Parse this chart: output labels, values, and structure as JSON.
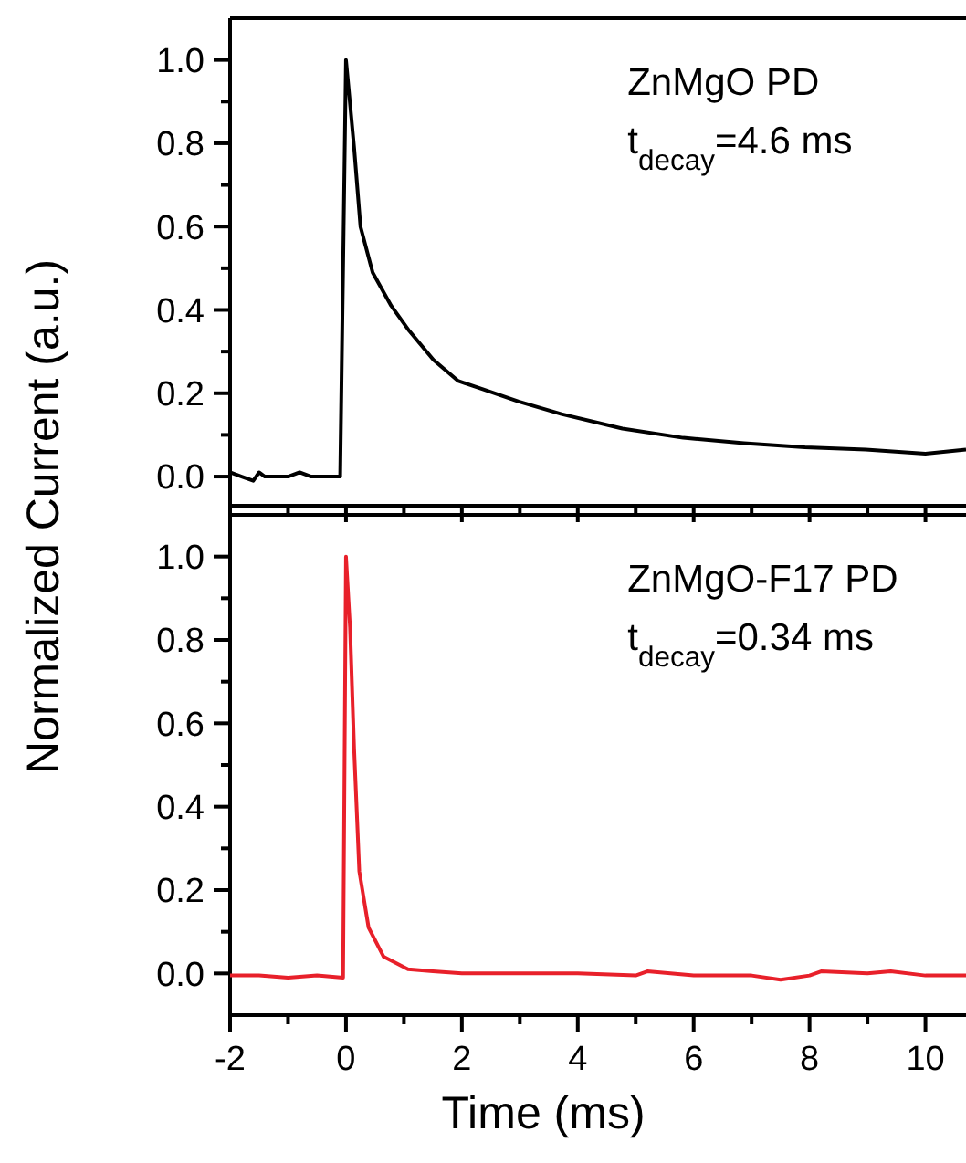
{
  "chart_data": [
    {
      "type": "line",
      "ylabel": "Normalized Current (a.u.)",
      "annotations": [
        "ZnMgO PD",
        "t$_{decay}$=4.6 ms"
      ],
      "xlim": [
        -2,
        10.7
      ],
      "ylim": [
        -0.07,
        1.1
      ],
      "xticks": [
        -2,
        {
          "value": -1,
          "label": null
        },
        0,
        {
          "value": 1,
          "label": null
        },
        2,
        {
          "value": 3,
          "label": null
        },
        4,
        {
          "value": 5,
          "label": null
        },
        6,
        {
          "value": 7,
          "label": null
        },
        8,
        {
          "value": 9,
          "label": null
        },
        10
      ],
      "yticks": [
        {
          "value": 0,
          "label": "0.0"
        },
        {
          "value": 0.1,
          "label": null
        },
        0.2,
        {
          "value": 0.3,
          "label": null
        },
        0.4,
        {
          "value": 0.5,
          "label": null
        },
        0.6,
        {
          "value": 0.7,
          "label": null
        },
        0.8,
        {
          "value": 0.9,
          "label": null
        },
        {
          "value": 1,
          "label": "1.0"
        }
      ],
      "tick_labels": "y",
      "grid": false,
      "marker": "none",
      "line_style": "solid",
      "series": [
        {
          "color": "#000000",
          "x": [
            -2,
            -1.8,
            -1.6,
            -1.5,
            -1.4,
            -1.2,
            -1.0,
            -0.8,
            -0.6,
            -0.1,
            0,
            0.14,
            0.25,
            0.46,
            0.78,
            1.09,
            1.51,
            1.93,
            2.35,
            2.98,
            3.72,
            4.77,
            5.82,
            6.87,
            7.92,
            8.97,
            10.0,
            10.7
          ],
          "values": [
            0.01,
            0,
            -0.01,
            0.01,
            0,
            0,
            0,
            0.01,
            0,
            0,
            1.0,
            0.79,
            0.6,
            0.49,
            0.41,
            0.35,
            0.28,
            0.23,
            0.21,
            0.18,
            0.15,
            0.115,
            0.093,
            0.08,
            0.07,
            0.065,
            0.055,
            0.065
          ]
        }
      ]
    },
    {
      "type": "line",
      "xlabel": "Time (ms)",
      "annotations": [
        "ZnMgO-F17 PD",
        "t$_{decay}$=0.34 ms"
      ],
      "xlim": [
        -2,
        10.7
      ],
      "ylim": [
        -0.1,
        1.1
      ],
      "xticks": [
        -2,
        {
          "value": -1,
          "label": null
        },
        0,
        {
          "value": 1,
          "label": null
        },
        2,
        {
          "value": 3,
          "label": null
        },
        4,
        {
          "value": 5,
          "label": null
        },
        6,
        {
          "value": 7,
          "label": null
        },
        8,
        {
          "value": 9,
          "label": null
        },
        10
      ],
      "yticks": [
        {
          "value": 0,
          "label": "0.0"
        },
        {
          "value": 0.1,
          "label": null
        },
        0.2,
        {
          "value": 0.3,
          "label": null
        },
        0.4,
        {
          "value": 0.5,
          "label": null
        },
        0.6,
        {
          "value": 0.7,
          "label": null
        },
        0.8,
        {
          "value": 0.9,
          "label": null
        },
        {
          "value": 1,
          "label": "1.0"
        }
      ],
      "grid": false,
      "marker": "none",
      "line_style": "solid",
      "series": [
        {
          "color": "#e8202a",
          "x": [
            -2,
            -1.5,
            -1.0,
            -0.5,
            -0.05,
            0,
            0.07,
            0.14,
            0.23,
            0.39,
            0.65,
            1.07,
            1.5,
            2,
            3,
            4,
            5,
            5.2,
            6,
            7,
            7.5,
            8,
            8.2,
            9,
            9.4,
            10,
            10.7
          ],
          "values": [
            -0.005,
            -0.005,
            -0.01,
            -0.005,
            -0.01,
            1.0,
            0.83,
            0.54,
            0.245,
            0.11,
            0.04,
            0.01,
            0.005,
            0,
            0,
            0,
            -0.005,
            0.005,
            -0.005,
            -0.005,
            -0.015,
            -0.005,
            0.005,
            0,
            0.005,
            -0.005,
            -0.005
          ]
        }
      ]
    }
  ]
}
